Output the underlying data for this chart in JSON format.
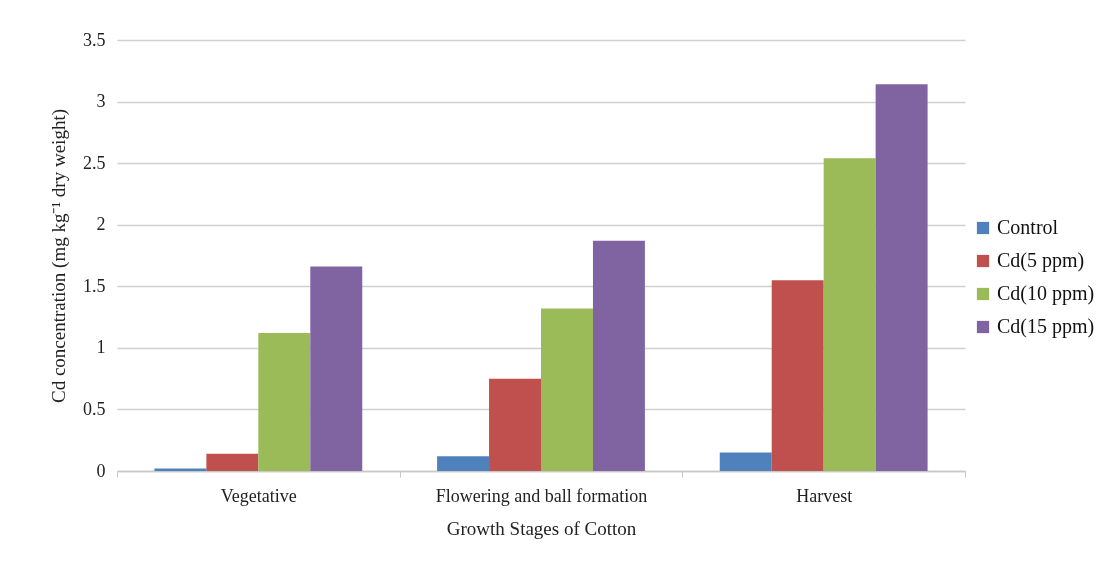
{
  "chart_data": {
    "type": "bar",
    "xlabel": "Growth Stages of Cotton",
    "ylabel": "Cd concentration (mg kg⁻¹ dry weight)",
    "categories": [
      "Vegetative",
      "Flowering and ball formation",
      "Harvest"
    ],
    "series": [
      {
        "name": "Control",
        "color": "#4f81bd",
        "values": [
          0.02,
          0.12,
          0.15
        ]
      },
      {
        "name": "Cd(5 ppm)",
        "color": "#c0504d",
        "values": [
          0.14,
          0.75,
          1.55
        ]
      },
      {
        "name": "Cd(10 ppm)",
        "color": "#9bbb59",
        "values": [
          1.12,
          1.32,
          2.54
        ]
      },
      {
        "name": "Cd(15 ppm)",
        "color": "#8064a2",
        "values": [
          1.66,
          1.87,
          3.14
        ]
      }
    ],
    "ylim": [
      0,
      3.5
    ],
    "yticks": [
      0,
      0.5,
      1,
      1.5,
      2,
      2.5,
      3,
      3.5
    ],
    "grid": "y",
    "legend": "right"
  }
}
